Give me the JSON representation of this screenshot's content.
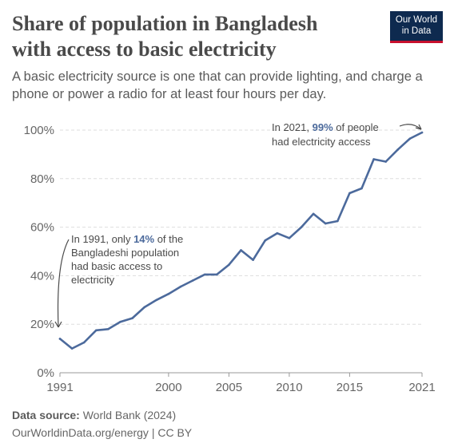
{
  "header": {
    "title_line1": "Share of population in Bangladesh",
    "title_line2": "with access to basic electricity",
    "subtitle": "A basic electricity source is one that can provide lighting, and charge a phone or power a radio for at least four hours per day.",
    "logo_line1": "Our World",
    "logo_line2": "in Data"
  },
  "footer": {
    "source_label": "Data source:",
    "source_value": "World Bank (2024)",
    "credit": "OurWorldinData.org/energy | CC BY"
  },
  "colors": {
    "line": "#4c6a9c",
    "accent": "#c8102e",
    "brand": "#0e2a4f"
  },
  "chart_data": {
    "type": "line",
    "title": "Share of population in Bangladesh with access to basic electricity",
    "x": [
      1991,
      1992,
      1993,
      1994,
      1995,
      1996,
      1997,
      1998,
      1999,
      2000,
      2001,
      2002,
      2003,
      2004,
      2005,
      2006,
      2007,
      2008,
      2009,
      2010,
      2011,
      2012,
      2013,
      2014,
      2015,
      2016,
      2017,
      2018,
      2019,
      2020,
      2021
    ],
    "series": [
      {
        "values": [
          14,
          10,
          12.5,
          17.5,
          18,
          21,
          22.5,
          27,
          30,
          32.5,
          35.5,
          38,
          40.5,
          40.5,
          44.5,
          50.5,
          46.5,
          54.5,
          57.5,
          55.5,
          60,
          65.5,
          61.5,
          62.5,
          74,
          76,
          88,
          87,
          92,
          96.5,
          99
        ]
      }
    ],
    "xticks": [
      1991,
      2000,
      2005,
      2010,
      2015,
      2021
    ],
    "xtick_labels": [
      "1991",
      "2000",
      "2005",
      "2010",
      "2015",
      "2021"
    ],
    "yticks": [
      0,
      20,
      40,
      60,
      80,
      100
    ],
    "ytick_labels": [
      "0%",
      "20%",
      "40%",
      "60%",
      "80%",
      "100%"
    ],
    "xlim": [
      1991,
      2021
    ],
    "ylim": [
      0,
      100
    ],
    "grid": "horizontal dashed",
    "annotations": {
      "start": {
        "line1_pre": "In 1991, only ",
        "line1_value": "14%",
        "line1_post": " of the",
        "line2": "Bangladeshi population",
        "line3": "had basic access to",
        "line4": "electricity"
      },
      "end": {
        "line1_pre": "In 2021, ",
        "line1_value": "99%",
        "line1_post": " of people",
        "line2": "had electricity access"
      }
    }
  }
}
